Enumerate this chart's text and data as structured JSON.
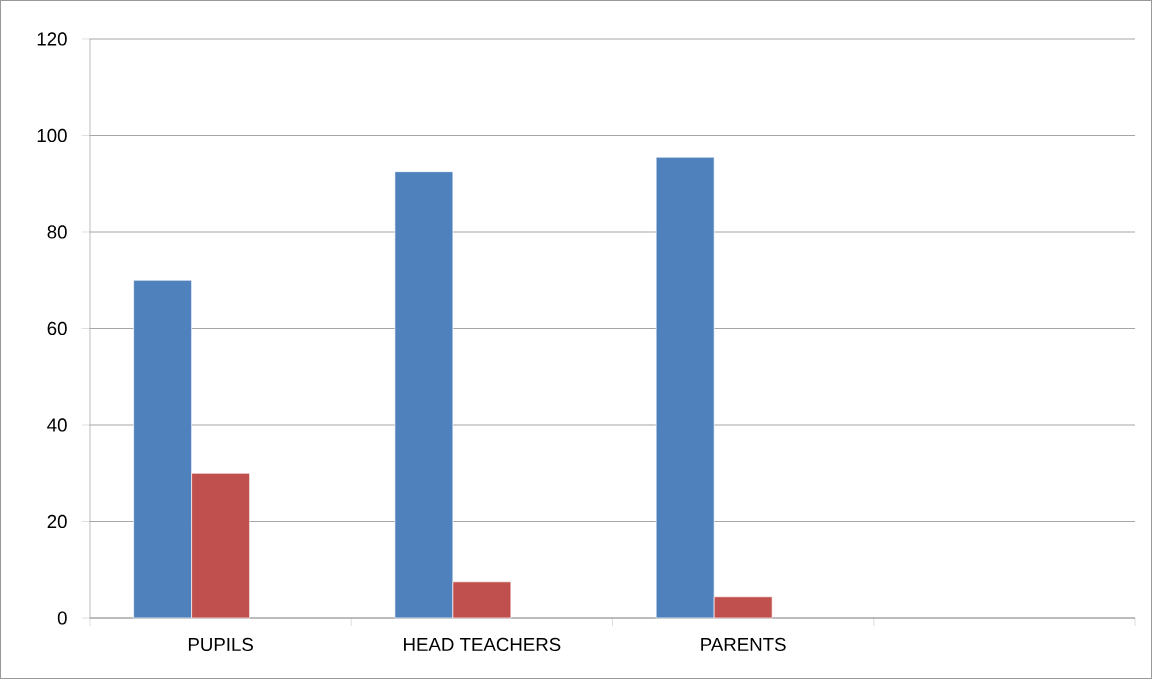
{
  "chart_data": {
    "type": "bar",
    "categories": [
      "PUPILS",
      "HEAD TEACHERS",
      "PARENTS",
      null
    ],
    "series": [
      {
        "color": "#4f81bd",
        "values": [
          70,
          92.5,
          95.5,
          null
        ]
      },
      {
        "color": "#c0504d",
        "values": [
          30,
          7.5,
          4.4,
          null
        ]
      }
    ],
    "ylim": [
      0,
      120
    ],
    "yticks": [
      0,
      20,
      40,
      60,
      80,
      100,
      120
    ],
    "grid": "y"
  }
}
